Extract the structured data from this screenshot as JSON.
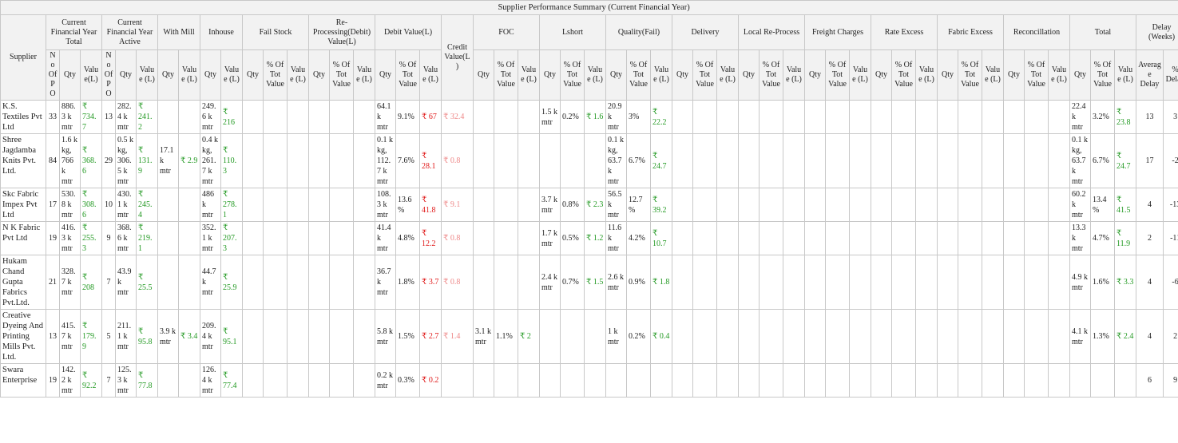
{
  "title": "Supplier Performance Summary (Current Financial Year)",
  "supplier_header": "Supplier",
  "groups": [
    {
      "label": "Current Financial Year Total",
      "columns": [
        {
          "label": "No Of PO"
        },
        {
          "label": "Qty"
        },
        {
          "label": "Value(L)",
          "color": "#229922"
        }
      ]
    },
    {
      "label": "Current Financial Year Active",
      "columns": [
        {
          "label": "No Of PO"
        },
        {
          "label": "Qty"
        },
        {
          "label": "Value (L)",
          "color": "#229922"
        }
      ]
    },
    {
      "label": "With Mill",
      "columns": [
        {
          "label": "Qty"
        },
        {
          "label": "Value (L)",
          "color": "#229922"
        }
      ]
    },
    {
      "label": "Inhouse",
      "columns": [
        {
          "label": "Qty"
        },
        {
          "label": "Value (L)",
          "color": "#229922"
        }
      ]
    },
    {
      "label": "Fail Stock",
      "columns": [
        {
          "label": "Qty"
        },
        {
          "label": "% Of Tot Value"
        },
        {
          "label": "Value (L)",
          "color": "#229922"
        }
      ]
    },
    {
      "label": "Re-Processing(Debit) Value(L)",
      "columns": [
        {
          "label": "Qty"
        },
        {
          "label": "% Of Tot Value"
        },
        {
          "label": "Value (L)",
          "color": "#229922"
        }
      ]
    },
    {
      "label": "Debit Value(L)",
      "columns": [
        {
          "label": "Qty"
        },
        {
          "label": "% Of Tot Value"
        },
        {
          "label": "Value (L)",
          "color": "#e01818"
        }
      ]
    },
    {
      "label": "Credit Value(L)",
      "columns": [],
      "color": "#ee8888"
    },
    {
      "label": "FOC",
      "columns": [
        {
          "label": "Qty"
        },
        {
          "label": "% Of Tot Value"
        },
        {
          "label": "Value (L)",
          "color": "#229922"
        }
      ]
    },
    {
      "label": "Lshort",
      "columns": [
        {
          "label": "Qty"
        },
        {
          "label": "% Of Tot Value"
        },
        {
          "label": "Value (L)",
          "color": "#229922"
        }
      ]
    },
    {
      "label": "Quality(Fail)",
      "columns": [
        {
          "label": "Qty"
        },
        {
          "label": "% Of Tot Value"
        },
        {
          "label": "Value (L)",
          "color": "#229922"
        }
      ]
    },
    {
      "label": "Delivery",
      "columns": [
        {
          "label": "Qty"
        },
        {
          "label": "% Of Tot Value"
        },
        {
          "label": "Value (L)",
          "color": "#229922"
        }
      ]
    },
    {
      "label": "Local Re-Process",
      "columns": [
        {
          "label": "Qty"
        },
        {
          "label": "% Of Tot Value"
        },
        {
          "label": "Value (L)",
          "color": "#229922"
        }
      ]
    },
    {
      "label": "Freight Charges",
      "columns": [
        {
          "label": "Qty"
        },
        {
          "label": "% Of Tot Value"
        },
        {
          "label": "Value (L)",
          "color": "#229922"
        }
      ]
    },
    {
      "label": "Rate Excess",
      "columns": [
        {
          "label": "Qty"
        },
        {
          "label": "% Of Tot Value"
        },
        {
          "label": "Value (L)",
          "color": "#229922"
        }
      ]
    },
    {
      "label": "Fabric Excess",
      "columns": [
        {
          "label": "Qty"
        },
        {
          "label": "% Of Tot Value"
        },
        {
          "label": "Value (L)",
          "color": "#229922"
        }
      ]
    },
    {
      "label": "Reconcillation",
      "columns": [
        {
          "label": "Qty"
        },
        {
          "label": "% Of Tot Value"
        },
        {
          "label": "Value (L)",
          "color": "#229922"
        }
      ]
    },
    {
      "label": "Total",
      "columns": [
        {
          "label": "Qty"
        },
        {
          "label": "% Of Tot Value"
        },
        {
          "label": "Value (L)",
          "color": "#229922"
        }
      ]
    },
    {
      "label": "Delay (Weeks)",
      "columns": [
        {
          "label": "Average Delay"
        },
        {
          "label": "% Delay"
        }
      ]
    }
  ],
  "rows": [
    {
      "supplier": "K.S. Textiles Pvt Ltd",
      "cells": [
        33,
        "886.3 k mtr",
        "₹ 734.7",
        13,
        "282.4 k mtr",
        "₹ 241.2",
        null,
        null,
        "249.6 k mtr",
        "₹ 216",
        null,
        null,
        null,
        null,
        null,
        null,
        "64.1 k mtr",
        "9.1%",
        "₹ 67",
        "₹ 32.4",
        null,
        null,
        null,
        "1.5 k mtr",
        "0.2%",
        "₹ 1.6",
        "20.9 k mtr",
        "3%",
        "₹ 22.2",
        null,
        null,
        null,
        null,
        null,
        null,
        null,
        null,
        null,
        null,
        null,
        null,
        null,
        null,
        null,
        null,
        null,
        null,
        "22.4 k mtr",
        "3.2%",
        "₹ 23.8",
        13,
        3
      ]
    },
    {
      "supplier": "Shree Jagdamba Knits Pvt. Ltd.",
      "cells": [
        84,
        "1.6 k kg, 766 k mtr",
        "₹ 368.6",
        29,
        "0.5 k kg, 306.5 k mtr",
        "₹ 131.9",
        "17.1 k mtr",
        "₹ 2.9",
        "0.4 k kg, 261.7 k mtr",
        "₹ 110.3",
        null,
        null,
        null,
        null,
        null,
        null,
        "0.1 k kg, 112.7 k mtr",
        "7.6%",
        "₹ 28.1",
        "₹ 0.8",
        null,
        null,
        null,
        null,
        null,
        null,
        "0.1 k kg, 63.7 k mtr",
        "6.7%",
        "₹ 24.7",
        null,
        null,
        null,
        null,
        null,
        null,
        null,
        null,
        null,
        null,
        null,
        null,
        null,
        null,
        null,
        null,
        null,
        null,
        "0.1 k kg, 63.7 k mtr",
        "6.7%",
        "₹ 24.7",
        17,
        -2
      ]
    },
    {
      "supplier": "Skc Fabric Impex Pvt Ltd",
      "cells": [
        17,
        "530.8 k mtr",
        "₹ 308.6",
        10,
        "430.1 k mtr",
        "₹ 245.4",
        null,
        null,
        "486 k mtr",
        "₹ 278.1",
        null,
        null,
        null,
        null,
        null,
        null,
        "108.3 k mtr",
        "13.6%",
        "₹ 41.8",
        "₹ 9.1",
        null,
        null,
        null,
        "3.7 k mtr",
        "0.8%",
        "₹ 2.3",
        "56.5 k mtr",
        "12.7%",
        "₹ 39.2",
        null,
        null,
        null,
        null,
        null,
        null,
        null,
        null,
        null,
        null,
        null,
        null,
        null,
        null,
        null,
        null,
        null,
        null,
        "60.2 k mtr",
        "13.4%",
        "₹ 41.5",
        4,
        -13
      ]
    },
    {
      "supplier": "N K Fabric Pvt Ltd",
      "cells": [
        19,
        "416.3 k mtr",
        "₹ 255.3",
        9,
        "368.6 k mtr",
        "₹ 219.1",
        null,
        null,
        "352.1 k mtr",
        "₹ 207.3",
        null,
        null,
        null,
        null,
        null,
        null,
        "41.4 k mtr",
        "4.8%",
        "₹ 12.2",
        "₹ 0.8",
        null,
        null,
        null,
        "1.7 k mtr",
        "0.5%",
        "₹ 1.2",
        "11.6 k mtr",
        "4.2%",
        "₹ 10.7",
        null,
        null,
        null,
        null,
        null,
        null,
        null,
        null,
        null,
        null,
        null,
        null,
        null,
        null,
        null,
        null,
        null,
        null,
        "13.3 k mtr",
        "4.7%",
        "₹ 11.9",
        2,
        -11
      ]
    },
    {
      "supplier": "Hukam Chand Gupta Fabrics Pvt.Ltd.",
      "cells": [
        21,
        "328.7 k mtr",
        "₹ 208",
        7,
        "43.9 k mtr",
        "₹ 25.5",
        null,
        null,
        "44.7 k mtr",
        "₹ 25.9",
        null,
        null,
        null,
        null,
        null,
        null,
        "36.7 k mtr",
        "1.8%",
        "₹ 3.7",
        "₹ 0.8",
        null,
        null,
        null,
        "2.4 k mtr",
        "0.7%",
        "₹ 1.5",
        "2.6 k mtr",
        "0.9%",
        "₹ 1.8",
        null,
        null,
        null,
        null,
        null,
        null,
        null,
        null,
        null,
        null,
        null,
        null,
        null,
        null,
        null,
        null,
        null,
        null,
        "4.9 k mtr",
        "1.6%",
        "₹ 3.3",
        4,
        -6
      ]
    },
    {
      "supplier": "Creative Dyeing And Printing Mills Pvt. Ltd.",
      "cells": [
        13,
        "415.7 k mtr",
        "₹ 179.9",
        5,
        "211.1 k mtr",
        "₹ 95.8",
        "3.9 k mtr",
        "₹ 3.4",
        "209.4 k mtr",
        "₹ 95.1",
        null,
        null,
        null,
        null,
        null,
        null,
        "5.8 k mtr",
        "1.5%",
        "₹ 2.7",
        "₹ 1.4",
        "3.1 k mtr",
        "1.1%",
        "₹ 2",
        null,
        null,
        null,
        "1 k mtr",
        "0.2%",
        "₹ 0.4",
        null,
        null,
        null,
        null,
        null,
        null,
        null,
        null,
        null,
        null,
        null,
        null,
        null,
        null,
        null,
        null,
        null,
        null,
        "4.1 k mtr",
        "1.3%",
        "₹ 2.4",
        4,
        2
      ]
    },
    {
      "supplier": "Swara Enterprise",
      "cells": [
        19,
        "142.2 k mtr",
        "₹ 92.2",
        7,
        "125.3 k mtr",
        "₹ 77.8",
        null,
        null,
        "126.4 k mtr",
        "₹ 77.4",
        null,
        null,
        null,
        null,
        null,
        null,
        "0.2 k mtr",
        "0.3%",
        "₹ 0.2",
        null,
        null,
        null,
        null,
        null,
        null,
        null,
        null,
        null,
        null,
        null,
        null,
        null,
        null,
        null,
        null,
        null,
        null,
        null,
        null,
        null,
        null,
        null,
        null,
        null,
        null,
        null,
        null,
        null,
        null,
        null,
        6,
        9
      ]
    }
  ]
}
